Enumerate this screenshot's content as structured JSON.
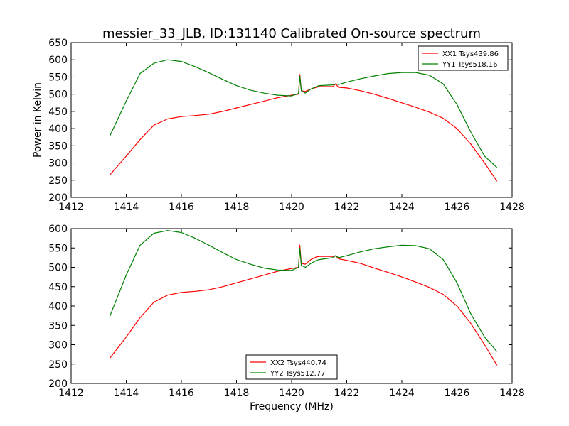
{
  "chart_data": [
    {
      "type": "line",
      "title": "messier_33_JLB, ID:131140 Calibrated On-source spectrum",
      "xlabel": "",
      "ylabel": "Power in Kelvin",
      "xlim": [
        1412,
        1428
      ],
      "ylim": [
        200,
        650
      ],
      "xticks": [
        1412,
        1414,
        1416,
        1418,
        1420,
        1422,
        1424,
        1426,
        1428
      ],
      "yticks": [
        200,
        250,
        300,
        350,
        400,
        450,
        500,
        550,
        600,
        650
      ],
      "grid": false,
      "legend_position": "top-right",
      "series": [
        {
          "name": "XX1 Tsys439.86",
          "color": "#ff0000",
          "x": [
            1413.4,
            1414.0,
            1414.5,
            1415.0,
            1415.5,
            1416.0,
            1416.5,
            1417.0,
            1417.5,
            1418.0,
            1418.5,
            1419.0,
            1419.5,
            1420.0,
            1420.25,
            1420.3,
            1420.35,
            1420.5,
            1420.7,
            1420.9,
            1421.0,
            1421.5,
            1421.6,
            1421.7,
            1422.0,
            1422.5,
            1423.0,
            1423.5,
            1424.0,
            1424.5,
            1425.0,
            1425.5,
            1426.0,
            1426.5,
            1427.0,
            1427.45
          ],
          "y": [
            265,
            320,
            368,
            410,
            428,
            435,
            438,
            442,
            450,
            460,
            470,
            480,
            490,
            497,
            500,
            557,
            510,
            508,
            515,
            520,
            522,
            522,
            530,
            520,
            518,
            510,
            500,
            488,
            475,
            462,
            448,
            430,
            400,
            355,
            300,
            247
          ]
        },
        {
          "name": "YY1 Tsys518.16",
          "color": "#008000",
          "x": [
            1413.4,
            1414.0,
            1414.5,
            1415.0,
            1415.5,
            1416.0,
            1416.5,
            1417.0,
            1417.5,
            1418.0,
            1418.5,
            1419.0,
            1419.5,
            1420.0,
            1420.25,
            1420.3,
            1420.35,
            1420.5,
            1420.7,
            1420.9,
            1421.0,
            1421.5,
            1421.6,
            1421.7,
            1422.0,
            1422.5,
            1423.0,
            1423.5,
            1424.0,
            1424.5,
            1425.0,
            1425.5,
            1426.0,
            1426.5,
            1427.0,
            1427.45
          ],
          "y": [
            378,
            480,
            560,
            590,
            600,
            595,
            580,
            562,
            543,
            525,
            512,
            503,
            497,
            495,
            502,
            552,
            510,
            503,
            515,
            522,
            525,
            527,
            530,
            528,
            535,
            545,
            553,
            560,
            563,
            563,
            555,
            530,
            470,
            390,
            320,
            287
          ]
        }
      ]
    },
    {
      "type": "line",
      "title": "",
      "xlabel": "Frequency (MHz)",
      "ylabel": "",
      "xlim": [
        1412,
        1428
      ],
      "ylim": [
        200,
        600
      ],
      "xticks": [
        1412,
        1414,
        1416,
        1418,
        1420,
        1422,
        1424,
        1426,
        1428
      ],
      "yticks": [
        200,
        250,
        300,
        350,
        400,
        450,
        500,
        550,
        600
      ],
      "grid": false,
      "legend_position": "bottom-center",
      "series": [
        {
          "name": "XX2 Tsys440.74",
          "color": "#ff0000",
          "x": [
            1413.4,
            1414.0,
            1414.5,
            1415.0,
            1415.5,
            1416.0,
            1416.5,
            1417.0,
            1417.5,
            1418.0,
            1418.5,
            1419.0,
            1419.5,
            1420.0,
            1420.25,
            1420.3,
            1420.35,
            1420.5,
            1420.7,
            1420.9,
            1421.0,
            1421.5,
            1421.6,
            1421.7,
            1422.0,
            1422.5,
            1423.0,
            1423.5,
            1424.0,
            1424.5,
            1425.0,
            1425.5,
            1426.0,
            1426.5,
            1427.0,
            1427.45
          ],
          "y": [
            265,
            320,
            370,
            410,
            428,
            435,
            438,
            442,
            450,
            460,
            470,
            480,
            490,
            497,
            500,
            557,
            510,
            508,
            520,
            527,
            528,
            528,
            530,
            522,
            518,
            510,
            498,
            487,
            475,
            462,
            448,
            430,
            400,
            355,
            300,
            247
          ]
        },
        {
          "name": "YY2 Tsys512.77",
          "color": "#008000",
          "x": [
            1413.4,
            1414.0,
            1414.5,
            1415.0,
            1415.5,
            1416.0,
            1416.5,
            1417.0,
            1417.5,
            1418.0,
            1418.5,
            1419.0,
            1419.5,
            1420.0,
            1420.25,
            1420.3,
            1420.35,
            1420.5,
            1420.7,
            1420.9,
            1421.0,
            1421.5,
            1421.6,
            1421.7,
            1422.0,
            1422.5,
            1423.0,
            1423.5,
            1424.0,
            1424.5,
            1425.0,
            1425.5,
            1426.0,
            1426.5,
            1427.0,
            1427.45
          ],
          "y": [
            373,
            480,
            557,
            588,
            595,
            590,
            575,
            557,
            538,
            520,
            508,
            498,
            493,
            492,
            500,
            550,
            505,
            500,
            510,
            518,
            520,
            525,
            530,
            525,
            530,
            540,
            548,
            553,
            557,
            556,
            548,
            520,
            460,
            380,
            320,
            282
          ]
        }
      ]
    }
  ]
}
